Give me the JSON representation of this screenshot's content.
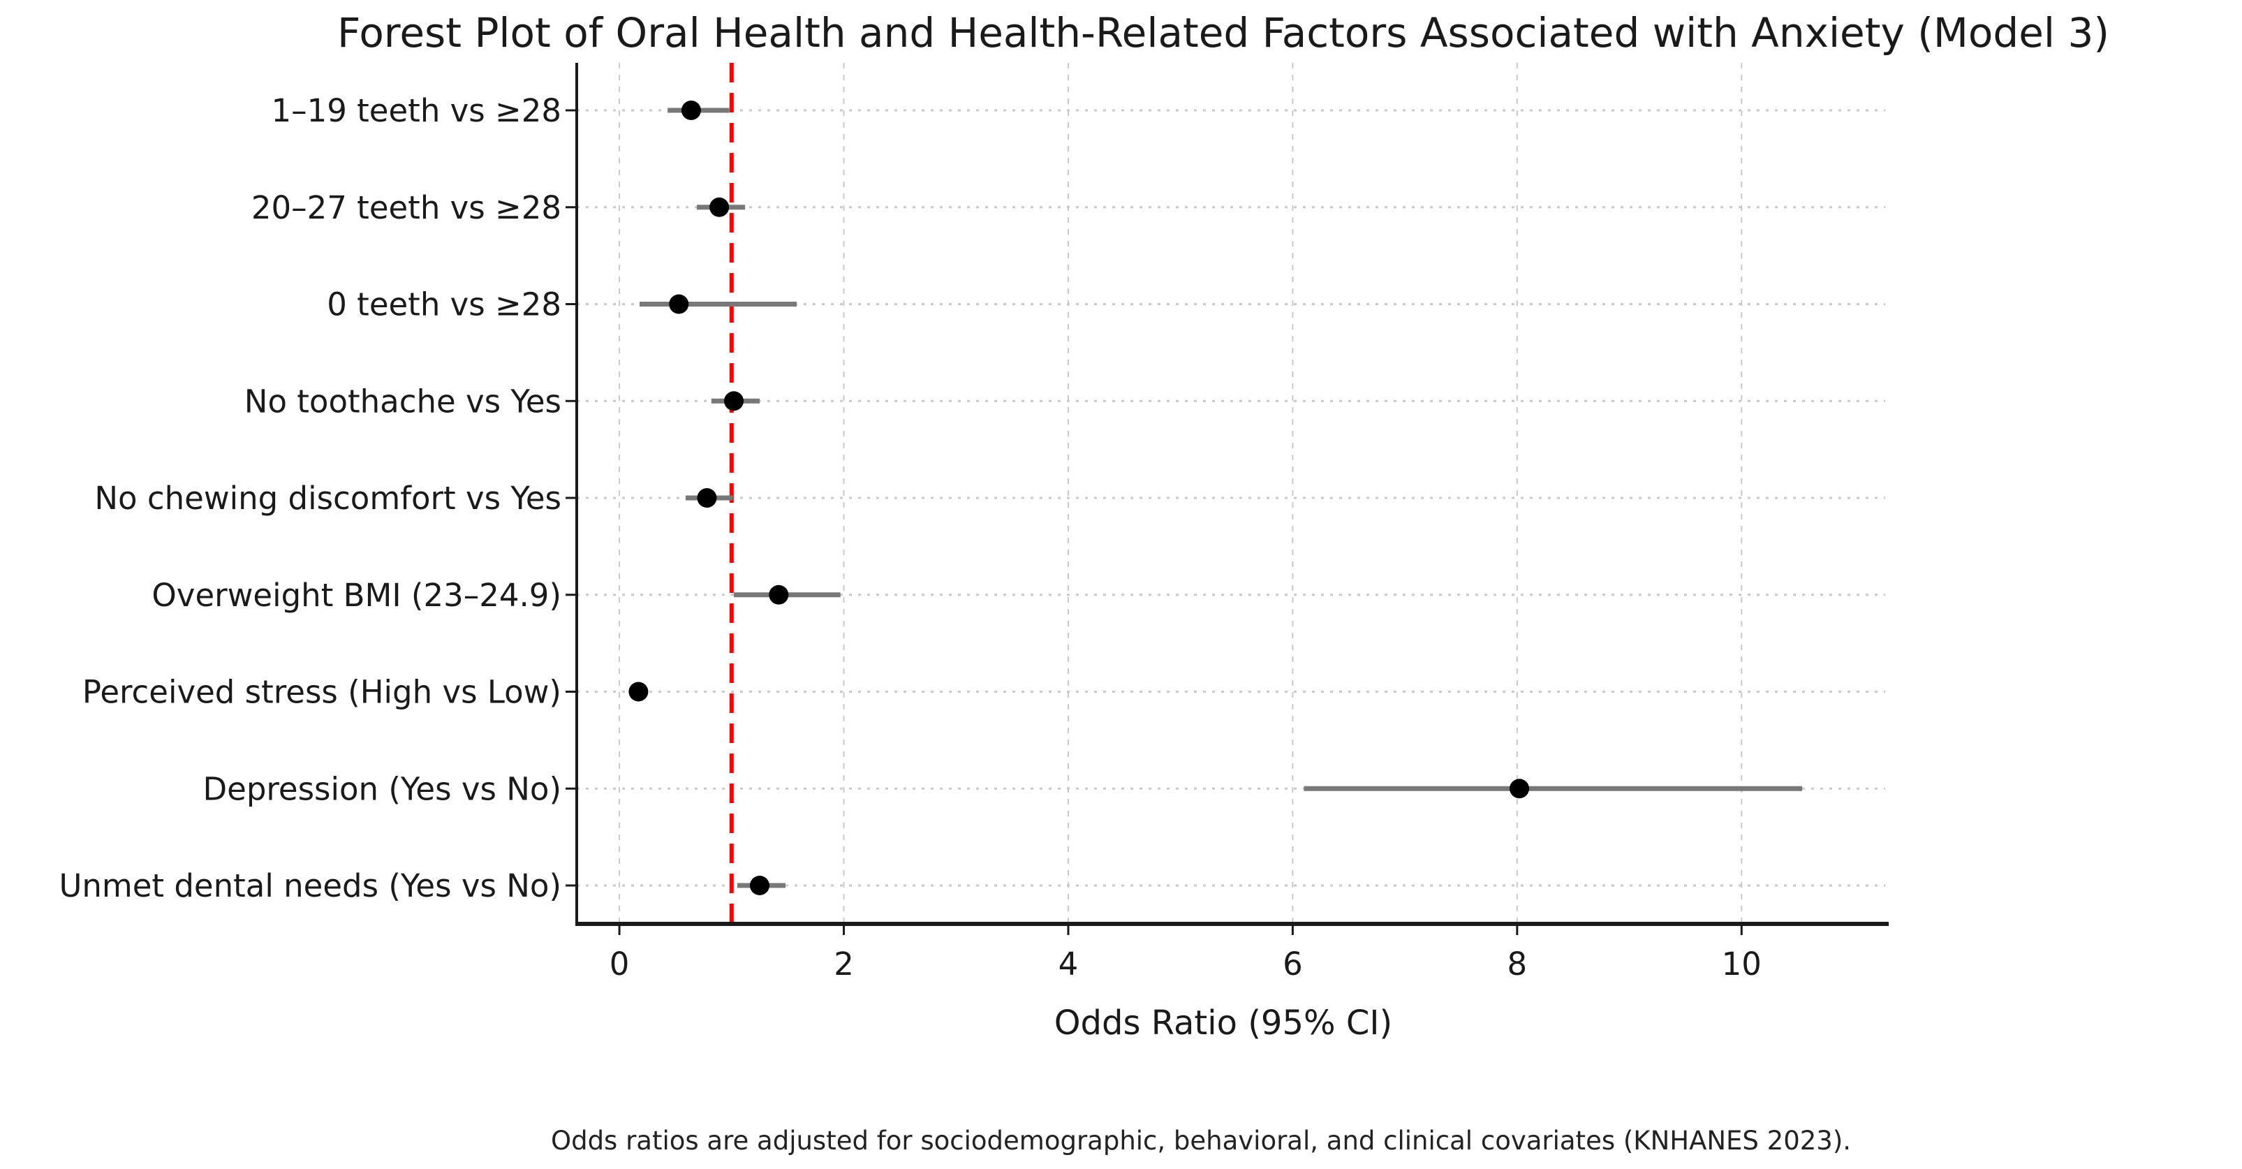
{
  "chart_data": {
    "type": "scatter",
    "subtype": "forest-plot",
    "title": "Forest Plot of Oral Health and Health-Related Factors Associated with Anxiety (Model 3)",
    "xlabel": "Odds Ratio (95% CI)",
    "footnote": "Odds ratios are adjusted for sociodemographic, behavioral, and clinical covariates (KNHANES 2023).",
    "xlim": [
      -0.38,
      11.28
    ],
    "xticks": [
      0,
      2,
      4,
      6,
      8,
      10
    ],
    "reference_line": {
      "x": 1.0,
      "style": "dashed",
      "color": "#ff0000"
    },
    "grid": {
      "vertical": "dashed",
      "horizontal": "dotted",
      "color": "#c9c9c9"
    },
    "legend": "none",
    "rows": [
      {
        "label": "1–19 teeth vs ≥28",
        "or": 0.64,
        "ci_low": 0.43,
        "ci_high": 0.98
      },
      {
        "label": "20–27 teeth vs ≥28",
        "or": 0.89,
        "ci_low": 0.69,
        "ci_high": 1.12
      },
      {
        "label": "0 teeth vs ≥28",
        "or": 0.53,
        "ci_low": 0.18,
        "ci_high": 1.58
      },
      {
        "label": "No toothache vs Yes",
        "or": 1.02,
        "ci_low": 0.82,
        "ci_high": 1.25
      },
      {
        "label": "No chewing discomfort vs Yes",
        "or": 0.78,
        "ci_low": 0.59,
        "ci_high": 1.01
      },
      {
        "label": "Overweight BMI (23–24.9)",
        "or": 1.42,
        "ci_low": 1.02,
        "ci_high": 1.97
      },
      {
        "label": "Perceived stress (High vs Low)",
        "or": 0.17,
        "ci_low": 0.12,
        "ci_high": 0.24
      },
      {
        "label": "Depression (Yes vs No)",
        "or": 8.02,
        "ci_low": 6.1,
        "ci_high": 10.54
      },
      {
        "label": "Unmet dental needs (Yes vs No)",
        "or": 1.25,
        "ci_low": 1.05,
        "ci_high": 1.48
      }
    ],
    "colors": {
      "marker": "#000000",
      "ci_line": "#787878",
      "reference": "#ff0000",
      "grid": "#c9c9c9",
      "spine": "#1a1a1a",
      "text": "#1a1a1a"
    }
  }
}
